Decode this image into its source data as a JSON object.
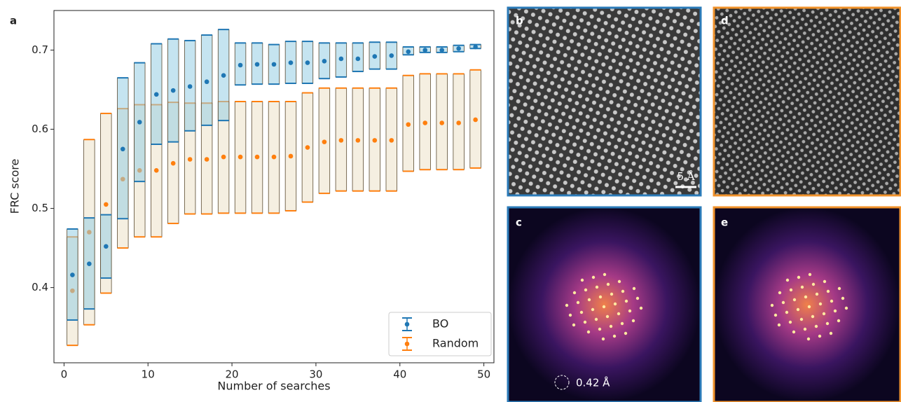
{
  "chart_data": {
    "type": "error_range",
    "panel_label": "a",
    "x_label": "Number of searches",
    "y_label": "FRC score",
    "xlim": [
      -1.2,
      51.2
    ],
    "ylim": [
      0.305,
      0.75
    ],
    "xticks": [
      0,
      10,
      20,
      30,
      40,
      50
    ],
    "yticks": [
      0.4,
      0.5,
      0.6,
      0.7
    ],
    "legend": "lower right",
    "x": [
      1,
      3,
      5,
      7,
      9,
      11,
      13,
      15,
      17,
      19,
      21,
      23,
      25,
      27,
      29,
      31,
      33,
      35,
      37,
      39,
      41,
      43,
      45,
      47,
      49
    ],
    "series": [
      {
        "name": "Random",
        "color": "#ff7f0e",
        "fill": "rgba(238,228,205,0.6)",
        "values": [
          0.396,
          0.47,
          0.505,
          0.537,
          0.548,
          0.548,
          0.557,
          0.562,
          0.562,
          0.565,
          0.565,
          0.565,
          0.565,
          0.566,
          0.577,
          0.584,
          0.586,
          0.586,
          0.586,
          0.586,
          0.606,
          0.608,
          0.608,
          0.608,
          0.612
        ],
        "lower": [
          0.327,
          0.353,
          0.393,
          0.45,
          0.464,
          0.464,
          0.481,
          0.493,
          0.493,
          0.494,
          0.494,
          0.494,
          0.494,
          0.497,
          0.508,
          0.519,
          0.522,
          0.522,
          0.522,
          0.522,
          0.547,
          0.549,
          0.549,
          0.549,
          0.551
        ],
        "upper": [
          0.464,
          0.587,
          0.62,
          0.626,
          0.631,
          0.631,
          0.634,
          0.633,
          0.633,
          0.635,
          0.635,
          0.635,
          0.635,
          0.635,
          0.646,
          0.652,
          0.652,
          0.652,
          0.652,
          0.652,
          0.668,
          0.67,
          0.67,
          0.67,
          0.675
        ]
      },
      {
        "name": "BO",
        "color": "#1f77b4",
        "fill": "rgba(150,205,228,0.55)",
        "values": [
          0.416,
          0.43,
          0.452,
          0.575,
          0.609,
          0.644,
          0.649,
          0.654,
          0.66,
          0.668,
          0.681,
          0.682,
          0.682,
          0.684,
          0.684,
          0.686,
          0.689,
          0.689,
          0.692,
          0.693,
          0.698,
          0.7,
          0.7,
          0.702,
          0.704
        ],
        "lower": [
          0.359,
          0.373,
          0.412,
          0.487,
          0.534,
          0.581,
          0.584,
          0.598,
          0.605,
          0.611,
          0.656,
          0.657,
          0.657,
          0.658,
          0.658,
          0.664,
          0.666,
          0.673,
          0.676,
          0.676,
          0.694,
          0.697,
          0.697,
          0.698,
          0.702
        ],
        "upper": [
          0.474,
          0.488,
          0.492,
          0.665,
          0.684,
          0.708,
          0.714,
          0.712,
          0.719,
          0.726,
          0.709,
          0.709,
          0.707,
          0.711,
          0.711,
          0.709,
          0.709,
          0.709,
          0.71,
          0.71,
          0.704,
          0.704,
          0.704,
          0.706,
          0.707
        ]
      }
    ]
  },
  "images": {
    "b": "b",
    "d": "d",
    "c": "c",
    "e": "e",
    "scale_bar": "5 Å",
    "resolution_ring": "0.42 Å"
  }
}
